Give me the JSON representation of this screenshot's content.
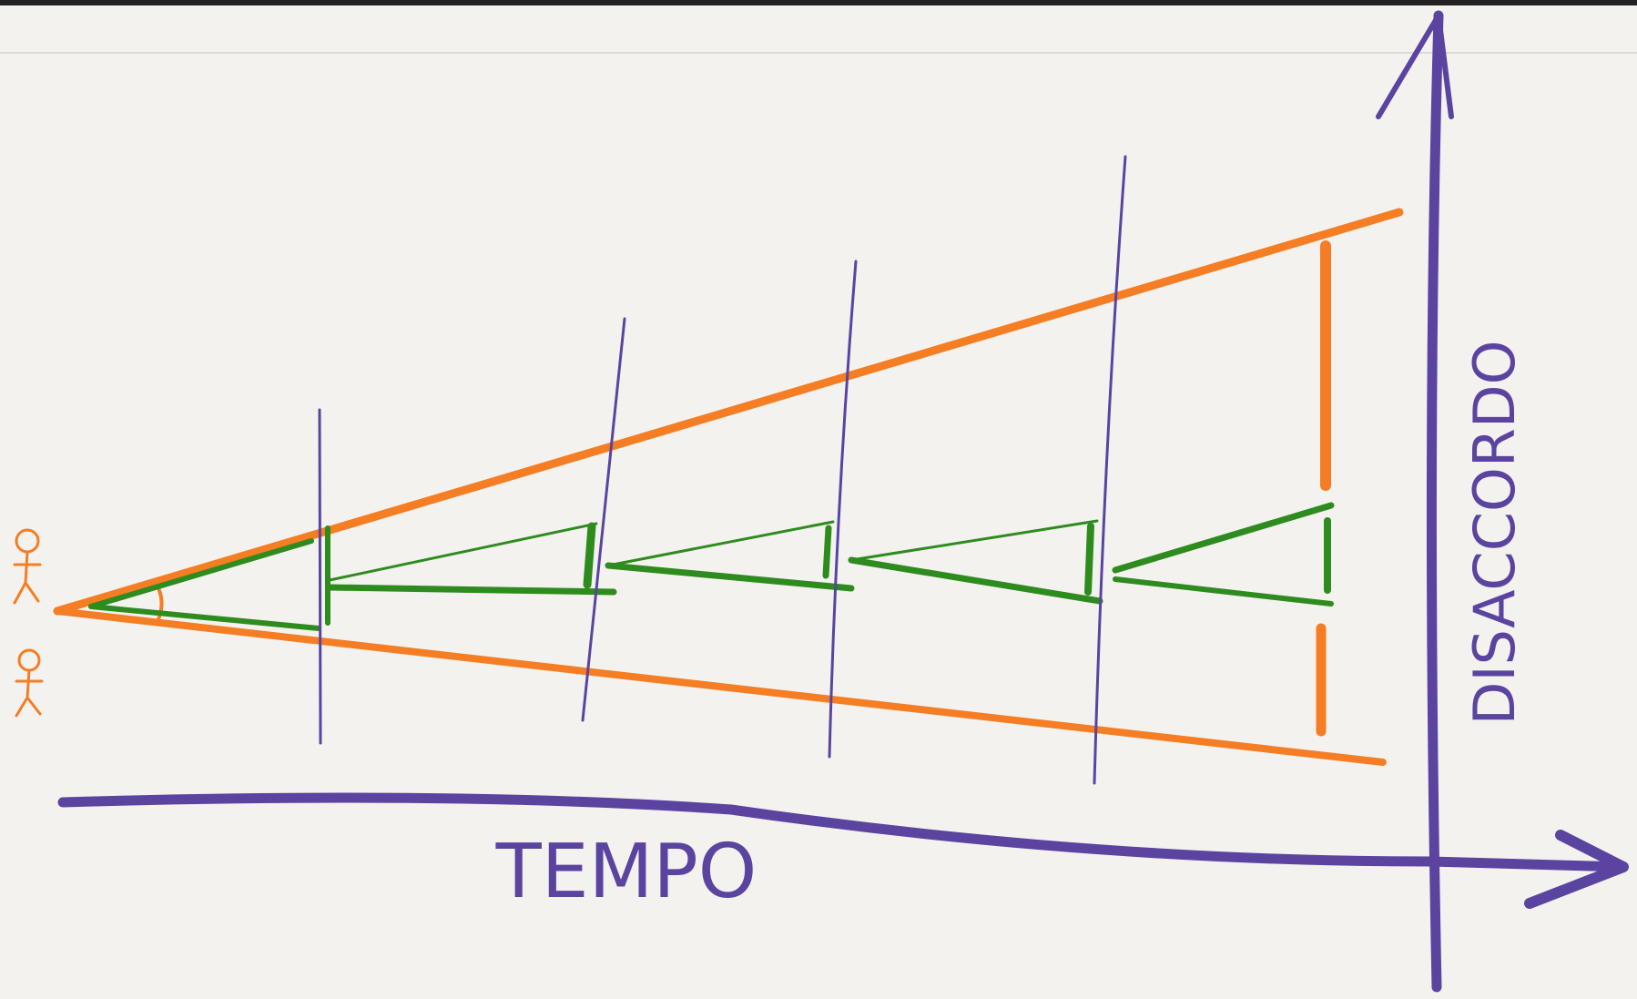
{
  "axes": {
    "x_label": "TEMPO",
    "y_label": "DISACCORDO"
  }
}
